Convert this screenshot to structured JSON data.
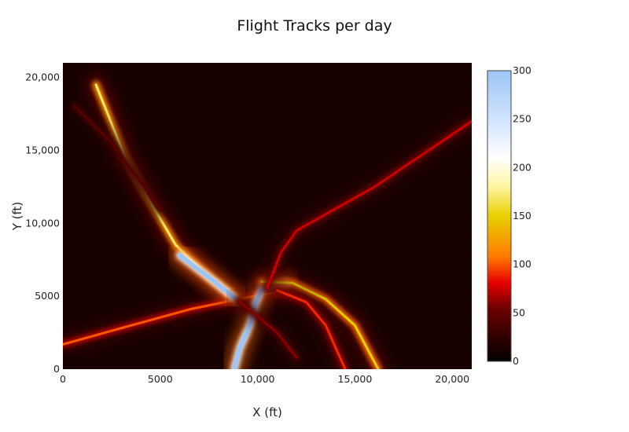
{
  "chart_data": {
    "type": "heatmap",
    "title": "Flight Tracks per day",
    "xlabel": "X (ft)",
    "ylabel": "Y (ft)",
    "xlim": [
      0,
      21000
    ],
    "ylim": [
      0,
      21000
    ],
    "x_ticks": [
      {
        "value": 0,
        "label": "0"
      },
      {
        "value": 5000,
        "label": "5000"
      },
      {
        "value": 10000,
        "label": "10,000"
      },
      {
        "value": 15000,
        "label": "15,000"
      },
      {
        "value": 20000,
        "label": "20,000"
      }
    ],
    "y_ticks": [
      {
        "value": 0,
        "label": "0"
      },
      {
        "value": 5000,
        "label": "5000"
      },
      {
        "value": 10000,
        "label": "10,000"
      },
      {
        "value": 15000,
        "label": "15,000"
      },
      {
        "value": 20000,
        "label": "20,000"
      }
    ],
    "colorbar": {
      "min": 0,
      "max": 300,
      "ticks": [
        {
          "value": 0,
          "label": "0"
        },
        {
          "value": 50,
          "label": "50"
        },
        {
          "value": 100,
          "label": "100"
        },
        {
          "value": 150,
          "label": "150"
        },
        {
          "value": 200,
          "label": "200"
        },
        {
          "value": 250,
          "label": "250"
        },
        {
          "value": 300,
          "label": "300"
        }
      ],
      "colorscale": [
        [
          0,
          "#000000"
        ],
        [
          0.18,
          "#6a0000"
        ],
        [
          0.27,
          "#e60000"
        ],
        [
          0.36,
          "#ff7a00"
        ],
        [
          0.5,
          "#e8d000"
        ],
        [
          0.6,
          "#fff5a0"
        ],
        [
          0.7,
          "#ffffff"
        ],
        [
          0.82,
          "#d4e6ff"
        ],
        [
          1,
          "#9ec5f5"
        ]
      ]
    },
    "background_level": 12,
    "tracks": [
      {
        "points": [
          [
            0,
            1700
          ],
          [
            3500,
            3000
          ],
          [
            6500,
            4100
          ],
          [
            9000,
            4800
          ],
          [
            11000,
            5300
          ]
        ],
        "level": 100
      },
      {
        "points": [
          [
            1700,
            19500
          ],
          [
            3200,
            14500
          ],
          [
            4700,
            11000
          ],
          [
            5800,
            8500
          ],
          [
            7500,
            6300
          ],
          [
            9000,
            4700
          ]
        ],
        "level": 170
      },
      {
        "points": [
          [
            6000,
            7800
          ],
          [
            7500,
            6300
          ],
          [
            8800,
            4900
          ]
        ],
        "level": 300
      },
      {
        "points": [
          [
            8800,
            0
          ],
          [
            9100,
            1500
          ],
          [
            9600,
            3000
          ],
          [
            9900,
            4500
          ],
          [
            10300,
            5700
          ],
          [
            11500,
            5900
          ]
        ],
        "level": 300
      },
      {
        "points": [
          [
            10200,
            6000
          ],
          [
            11800,
            5900
          ],
          [
            13500,
            4800
          ],
          [
            15000,
            3000
          ],
          [
            16200,
            0
          ]
        ],
        "level": 150
      },
      {
        "points": [
          [
            11000,
            5400
          ],
          [
            12500,
            4600
          ],
          [
            13500,
            3000
          ],
          [
            14500,
            0
          ]
        ],
        "level": 90
      },
      {
        "points": [
          [
            10500,
            5600
          ],
          [
            11200,
            8000
          ],
          [
            12000,
            9500
          ],
          [
            16000,
            12500
          ],
          [
            21000,
            17000
          ]
        ],
        "level": 75
      },
      {
        "points": [
          [
            9000,
            4700
          ],
          [
            11000,
            2500
          ],
          [
            12000,
            800
          ]
        ],
        "level": 60
      },
      {
        "points": [
          [
            600,
            18000
          ],
          [
            2500,
            15500
          ],
          [
            5000,
            11000
          ]
        ],
        "level": 45
      }
    ]
  }
}
